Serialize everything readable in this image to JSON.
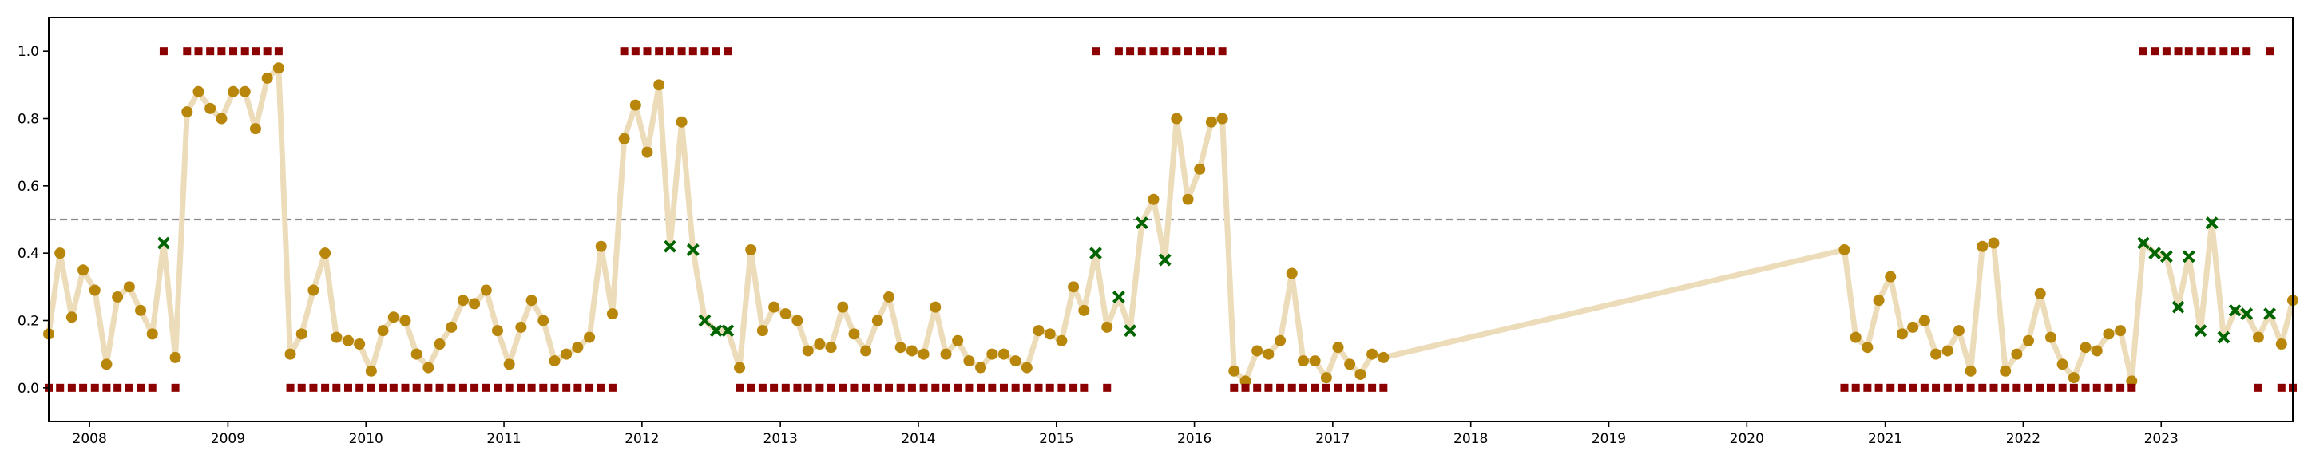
{
  "chart_data": {
    "type": "scatter",
    "title": "",
    "xlabel": "",
    "ylabel": "",
    "xlim": [
      "2007-09-15",
      "2023-12-15"
    ],
    "ylim": [
      -0.1,
      1.1
    ],
    "grid": false,
    "legend": "none",
    "colors": {
      "line": "#ecdcb9",
      "prob": "#b8860b",
      "label": "#8b0000",
      "cross": "#006400",
      "threshold": "#8c8c8c",
      "frame": "#000000"
    },
    "x_ticks": [
      {
        "date": "2008-01-01",
        "label": "2008"
      },
      {
        "date": "2009-01-01",
        "label": "2009"
      },
      {
        "date": "2010-01-01",
        "label": "2010"
      },
      {
        "date": "2011-01-01",
        "label": "2011"
      },
      {
        "date": "2012-01-01",
        "label": "2012"
      },
      {
        "date": "2013-01-01",
        "label": "2013"
      },
      {
        "date": "2014-01-01",
        "label": "2014"
      },
      {
        "date": "2015-01-01",
        "label": "2015"
      },
      {
        "date": "2016-01-01",
        "label": "2016"
      },
      {
        "date": "2017-01-01",
        "label": "2017"
      },
      {
        "date": "2018-01-01",
        "label": "2018"
      },
      {
        "date": "2019-01-01",
        "label": "2019"
      },
      {
        "date": "2020-01-01",
        "label": "2020"
      },
      {
        "date": "2021-01-01",
        "label": "2021"
      },
      {
        "date": "2022-01-01",
        "label": "2022"
      },
      {
        "date": "2023-01-01",
        "label": "2023"
      }
    ],
    "y_ticks": [
      {
        "value": 0.0,
        "label": "0.0"
      },
      {
        "value": 0.2,
        "label": "0.2"
      },
      {
        "value": 0.4,
        "label": "0.4"
      },
      {
        "value": 0.6,
        "label": "0.6"
      },
      {
        "value": 0.8,
        "label": "0.8"
      },
      {
        "value": 1.0,
        "label": "1.0"
      }
    ],
    "threshold": 0.5,
    "segments": [
      {
        "start": "2007-09",
        "values": [
          0.16,
          0.4,
          0.21,
          0.35,
          0.29,
          0.07,
          0.27,
          0.3,
          0.23,
          0.16,
          0.43,
          0.09,
          0.82,
          0.88,
          0.83,
          0.8,
          0.88,
          0.88,
          0.77,
          0.92,
          0.95,
          0.1,
          0.16,
          0.29,
          0.4,
          0.15,
          0.14,
          0.13,
          0.05,
          0.17,
          0.21,
          0.2,
          0.1,
          0.06,
          0.13,
          0.18,
          0.26,
          0.25,
          0.29,
          0.17,
          0.07,
          0.18,
          0.26,
          0.2,
          0.08,
          0.1,
          0.12,
          0.15,
          0.42,
          0.22,
          0.74,
          0.84,
          0.7,
          0.9,
          0.42,
          0.79,
          0.41,
          0.2,
          0.17,
          0.17,
          0.06,
          0.41,
          0.17,
          0.24,
          0.22,
          0.2,
          0.11,
          0.13,
          0.12,
          0.24,
          0.16,
          0.11,
          0.2,
          0.27,
          0.12,
          0.11,
          0.1,
          0.24,
          0.1,
          0.14,
          0.08,
          0.06,
          0.1,
          0.1,
          0.08,
          0.06,
          0.17,
          0.16,
          0.14,
          0.3,
          0.23,
          0.4,
          0.18,
          0.27,
          0.17,
          0.49,
          0.56,
          0.38,
          0.8,
          0.56,
          0.65,
          0.79,
          0.8,
          0.05,
          0.02,
          0.11,
          0.1,
          0.14,
          0.34,
          0.08,
          0.08,
          0.03,
          0.12,
          0.07,
          0.04,
          0.1,
          0.09
        ],
        "labels": [
          0,
          0,
          0,
          0,
          0,
          0,
          0,
          0,
          0,
          0,
          1,
          0,
          1,
          1,
          1,
          1,
          1,
          1,
          1,
          1,
          1,
          0,
          0,
          0,
          0,
          0,
          0,
          0,
          0,
          0,
          0,
          0,
          0,
          0,
          0,
          0,
          0,
          0,
          0,
          0,
          0,
          0,
          0,
          0,
          0,
          0,
          0,
          0,
          0,
          0,
          1,
          1,
          1,
          1,
          1,
          1,
          1,
          1,
          1,
          1,
          0,
          0,
          0,
          0,
          0,
          0,
          0,
          0,
          0,
          0,
          0,
          0,
          0,
          0,
          0,
          0,
          0,
          0,
          0,
          0,
          0,
          0,
          0,
          0,
          0,
          0,
          0,
          0,
          0,
          0,
          0,
          1,
          0,
          1,
          1,
          1,
          1,
          1,
          1,
          1,
          1,
          1,
          1,
          0,
          0,
          0,
          0,
          0,
          0,
          0,
          0,
          0,
          0,
          0,
          0,
          0,
          0
        ]
      },
      {
        "start": "2020-09",
        "values": [
          0.41,
          0.15,
          0.12,
          0.26,
          0.33,
          0.16,
          0.18,
          0.2,
          0.1,
          0.11,
          0.17,
          0.05,
          0.42,
          0.43,
          0.05,
          0.1,
          0.14,
          0.28,
          0.15,
          0.07,
          0.03,
          0.12,
          0.11,
          0.16,
          0.17,
          0.02,
          0.43,
          0.4,
          0.39,
          0.24,
          0.39,
          0.17,
          0.49,
          0.15,
          0.23,
          0.22,
          0.15,
          0.22,
          0.13,
          0.26
        ],
        "labels": [
          0,
          0,
          0,
          0,
          0,
          0,
          0,
          0,
          0,
          0,
          0,
          0,
          0,
          0,
          0,
          0,
          0,
          0,
          0,
          0,
          0,
          0,
          0,
          0,
          0,
          0,
          1,
          1,
          1,
          1,
          1,
          1,
          1,
          1,
          1,
          1,
          0,
          1,
          0,
          0
        ]
      }
    ]
  }
}
